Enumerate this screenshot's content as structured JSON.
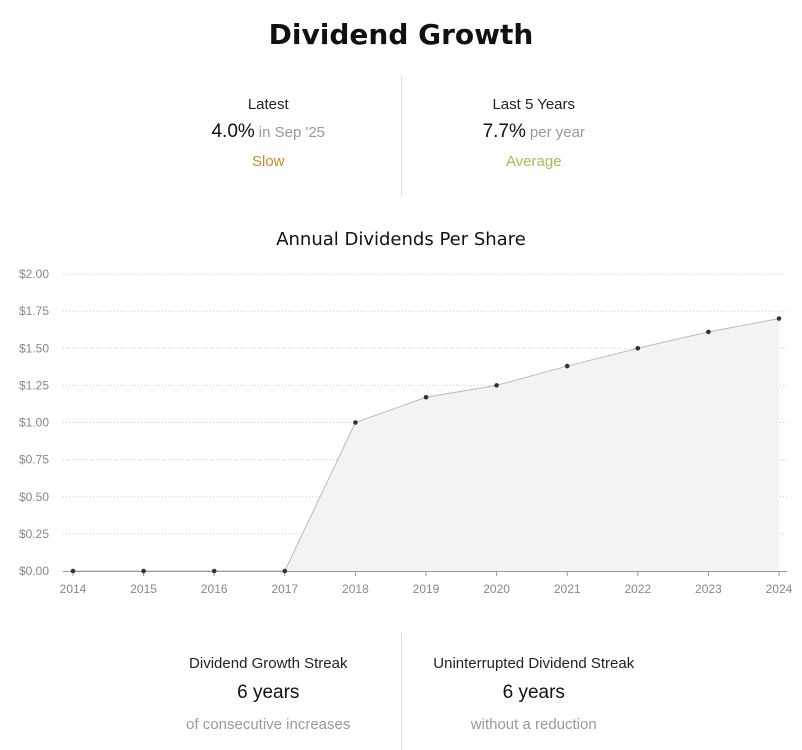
{
  "title": "Dividend Growth",
  "stats": {
    "latest": {
      "label": "Latest",
      "value": "4.0%",
      "suffix": "in Sep '25",
      "rating": "Slow",
      "rating_color": "#c9892a"
    },
    "last5": {
      "label": "Last 5 Years",
      "value": "7.7%",
      "suffix": "per year",
      "rating": "Average",
      "rating_color": "#a9bb55"
    }
  },
  "streaks": {
    "growth": {
      "label": "Dividend Growth Streak",
      "value": "6 years",
      "sub": "of consecutive increases"
    },
    "uninterrupted": {
      "label": "Uninterrupted Dividend Streak",
      "value": "6 years",
      "sub": "without a reduction"
    }
  },
  "chart_data": {
    "type": "area",
    "title": "Annual Dividends Per Share",
    "x": [
      "2014",
      "2015",
      "2016",
      "2017",
      "2018",
      "2019",
      "2020",
      "2021",
      "2022",
      "2023",
      "2024"
    ],
    "series": [
      {
        "values": [
          0,
          0,
          0,
          0,
          1.0,
          1.17,
          1.25,
          1.38,
          1.5,
          1.61,
          1.7
        ]
      }
    ],
    "yticks": [
      "$0.00",
      "$0.25",
      "$0.50",
      "$0.75",
      "$1.00",
      "$1.25",
      "$1.50",
      "$1.75",
      "$2.00"
    ],
    "ylim": [
      0,
      2
    ],
    "grid": true,
    "colors": {
      "line": "#bbbbbb",
      "fill": "#f3f3f3",
      "point": "#333333",
      "grid": "#cccccc",
      "axis": "#999999"
    }
  }
}
